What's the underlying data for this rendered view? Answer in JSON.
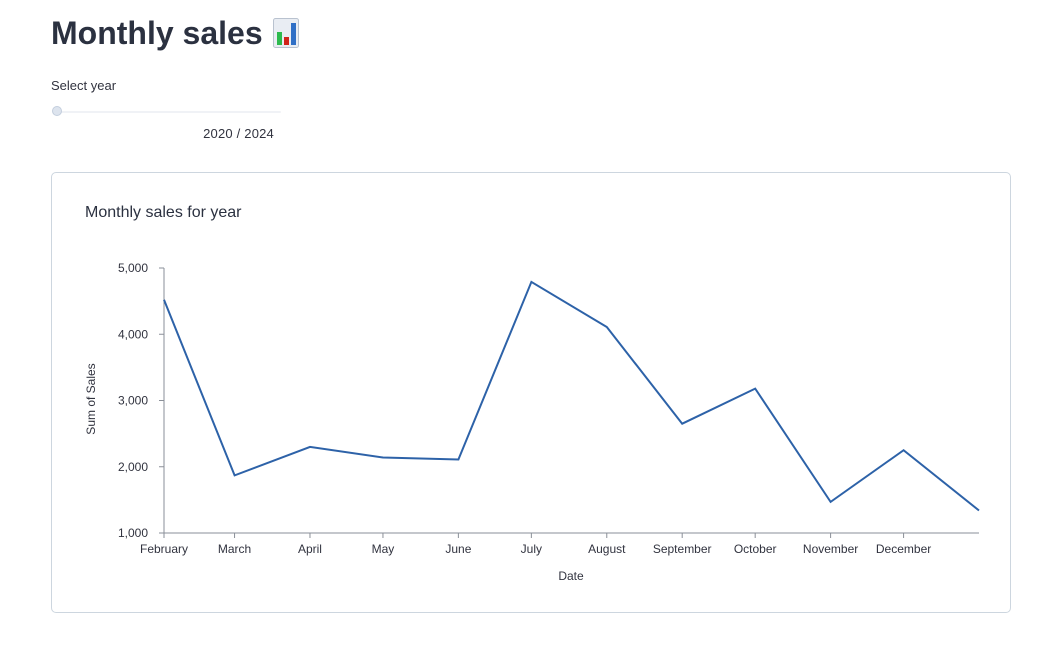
{
  "header": {
    "title": "Monthly sales",
    "icon": "bar-chart-icon"
  },
  "year_slider": {
    "label": "Select year",
    "value_text": "2020 / 2024",
    "position": 0.0
  },
  "chart_card": {
    "title": "Monthly sales for year"
  },
  "chart_data": {
    "type": "line",
    "title": "Monthly sales for year",
    "xlabel": "Date",
    "ylabel": "Sum of Sales",
    "ylim": [
      1000,
      5000
    ],
    "yticks": [
      "1,000",
      "2,000",
      "3,000",
      "4,000",
      "5,000"
    ],
    "categories": [
      "February",
      "March",
      "April",
      "May",
      "June",
      "July",
      "August",
      "September",
      "October",
      "November",
      "December"
    ],
    "x": [
      "2020-01-31",
      "2020-02-29",
      "2020-03-31",
      "2020-04-30",
      "2020-05-31",
      "2020-06-30",
      "2020-07-31",
      "2020-08-31",
      "2020-09-30",
      "2020-10-31",
      "2020-11-30",
      "2020-12-31"
    ],
    "series": [
      {
        "values": [
          4520,
          1870,
          2300,
          2140,
          2110,
          4790,
          4110,
          2650,
          3180,
          1470,
          2250,
          1340
        ],
        "color": "#2d62a8"
      }
    ],
    "grid": false,
    "legend": "none"
  }
}
